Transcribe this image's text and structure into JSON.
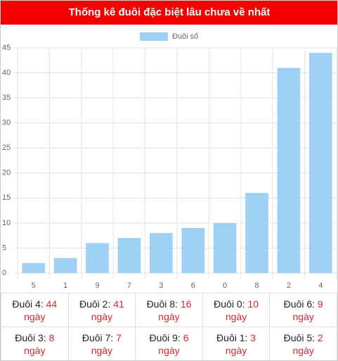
{
  "chart_data": {
    "type": "bar",
    "title": "Thống kê đuôi đặc biệt lâu chưa về nhất",
    "legend": "Đuôi số",
    "categories": [
      "5",
      "1",
      "9",
      "7",
      "3",
      "6",
      "0",
      "8",
      "2",
      "4"
    ],
    "values": [
      2,
      3,
      6,
      7,
      8,
      9,
      10,
      16,
      41,
      44
    ],
    "color": "#9fd0f5",
    "ylim": [
      0,
      45
    ],
    "yticks": [
      0,
      5,
      10,
      15,
      20,
      25,
      30,
      35,
      40,
      45
    ],
    "grid": true
  },
  "table": {
    "rows": [
      [
        {
          "label": "Đuôi 4:",
          "value": "44",
          "unit": "ngày"
        },
        {
          "label": "Đuôi 2:",
          "value": "41",
          "unit": "ngày"
        },
        {
          "label": "Đuôi 8:",
          "value": "16",
          "unit": "ngày"
        },
        {
          "label": "Đuôi 0:",
          "value": "10",
          "unit": "ngày"
        },
        {
          "label": "Đuôi 6:",
          "value": "9",
          "unit": "ngày"
        }
      ],
      [
        {
          "label": "Đuôi 3:",
          "value": "8",
          "unit": "ngày"
        },
        {
          "label": "Đuôi 7:",
          "value": "7",
          "unit": "ngày"
        },
        {
          "label": "Đuôi 9:",
          "value": "6",
          "unit": "ngày"
        },
        {
          "label": "Đuôi 1:",
          "value": "3",
          "unit": "ngày"
        },
        {
          "label": "Đuôi 5:",
          "value": "2",
          "unit": "ngày"
        }
      ]
    ]
  }
}
